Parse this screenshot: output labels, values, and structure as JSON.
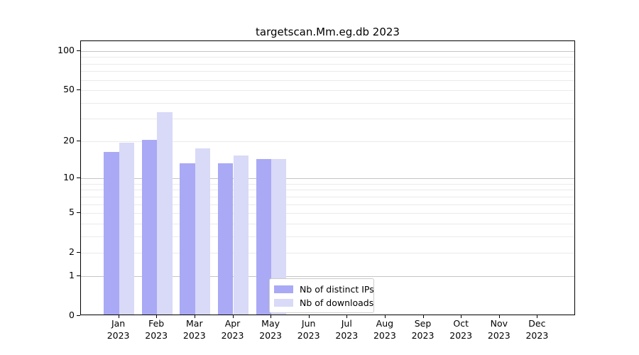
{
  "title": "targetscan.Mm.eg.db 2023",
  "colors": {
    "ips_bar": "#a9a9f5",
    "downloads_bar": "#d9d9f8",
    "grid_major": "#c5c5c5",
    "grid_minor": "#eaeaea",
    "axis": "#000000",
    "legend_border": "#cccccc"
  },
  "legend": {
    "items": [
      {
        "label": "Nb of distinct IPs",
        "color_key": "ips_bar"
      },
      {
        "label": "Nb of downloads",
        "color_key": "downloads_bar"
      }
    ]
  },
  "chart_data": {
    "type": "bar",
    "title": "targetscan.Mm.eg.db 2023",
    "categories": [
      "Jan",
      "Feb",
      "Mar",
      "Apr",
      "May",
      "Jun",
      "Jul",
      "Aug",
      "Sep",
      "Oct",
      "Nov",
      "Dec"
    ],
    "category_year": "2023",
    "series": [
      {
        "name": "Nb of distinct IPs",
        "color_key": "ips_bar",
        "values": [
          16,
          20,
          13,
          13,
          14,
          0,
          0,
          0,
          0,
          0,
          0,
          0
        ]
      },
      {
        "name": "Nb of downloads",
        "color_key": "downloads_bar",
        "values": [
          19,
          33,
          17,
          15,
          14,
          0,
          0,
          0,
          0,
          0,
          0,
          0
        ]
      }
    ],
    "y_axis": {
      "scale": "log1p",
      "tick_values": [
        100,
        50,
        20,
        10,
        5,
        2,
        1,
        0
      ],
      "major_gridline_values": [
        1,
        10,
        100
      ],
      "minor_gridline_values": [
        2,
        3,
        4,
        5,
        6,
        7,
        8,
        9,
        20,
        30,
        40,
        50,
        60,
        70,
        80,
        90
      ],
      "top_value": 118.6
    },
    "x_axis": {
      "units_total": 13,
      "bar_width_units": 0.4
    },
    "grid": true,
    "legend_position": "lower center"
  }
}
